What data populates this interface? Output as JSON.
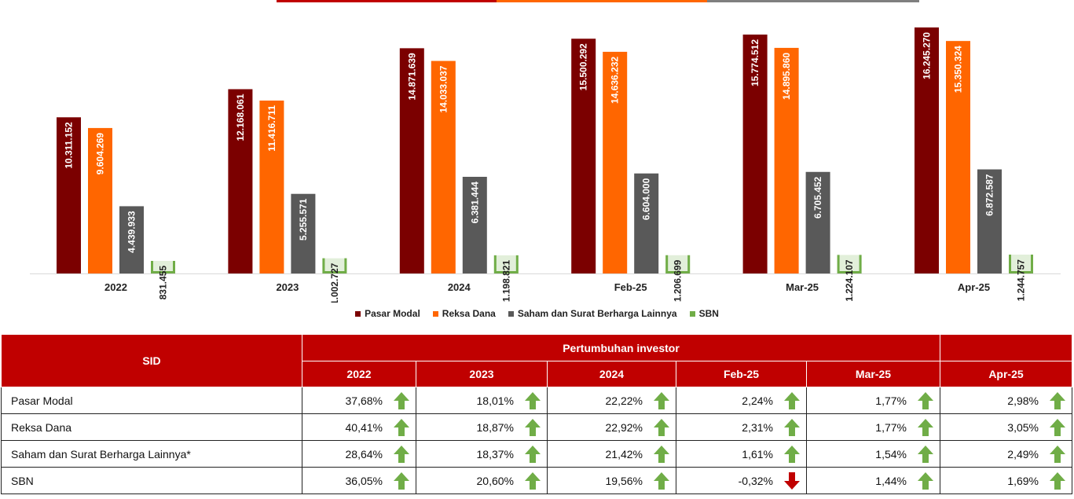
{
  "colors": {
    "pasar_modal": "#7b0000",
    "reksa_dana": "#ff6600",
    "saham": "#595959",
    "sbn": "#70ad47",
    "sbn_fill": "#e2efda",
    "header_red": "#c00000",
    "arrow_up": "#70ad47",
    "arrow_down": "#c00000"
  },
  "chart_data": {
    "type": "bar",
    "categories": [
      "2022",
      "2023",
      "2024",
      "Feb-25",
      "Mar-25",
      "Apr-25"
    ],
    "series": [
      {
        "name": "Pasar Modal",
        "values": [
          10311152,
          12168061,
          14871639,
          15500292,
          15774512,
          16245270
        ],
        "labels": [
          "10.311.152",
          "12.168.061",
          "14.871.639",
          "15.500.292",
          "15.774.512",
          "16.245.270"
        ]
      },
      {
        "name": "Reksa Dana",
        "values": [
          9604269,
          11416711,
          14033037,
          14636232,
          14895860,
          15350324
        ],
        "labels": [
          "9.604.269",
          "11.416.711",
          "14.033.037",
          "14.636.232",
          "14.895.860",
          "15.350.324"
        ]
      },
      {
        "name": "Saham dan Surat Berharga Lainnya",
        "values": [
          4439933,
          5255571,
          6381444,
          6604000,
          6705452,
          6872587
        ],
        "labels": [
          "4.439.933",
          "5.255.571",
          "6.381.444",
          "6.604.000",
          "6.705.452",
          "6.872.587"
        ]
      },
      {
        "name": "SBN",
        "values": [
          831455,
          1002727,
          1198821,
          1206699,
          1224107,
          1244757
        ],
        "labels": [
          "831.455",
          "1.002.727",
          "1.198.821",
          "1.206.699",
          "1.224.107",
          "1.244.757"
        ]
      }
    ],
    "ylim": [
      0,
      16500000
    ],
    "grid": false,
    "legend_position": "bottom"
  },
  "table": {
    "sid_label": "SID",
    "group_label": "Pertumbuhan investor",
    "periods": [
      "2022",
      "2023",
      "2024",
      "Feb-25",
      "Mar-25",
      "Apr-25"
    ],
    "rows": [
      {
        "label": "Pasar Modal",
        "values": [
          "37,68%",
          "18,01%",
          "22,22%",
          "2,24%",
          "1,77%",
          "2,98%"
        ],
        "trends": [
          "up",
          "up",
          "up",
          "up",
          "up",
          "up"
        ]
      },
      {
        "label": "Reksa Dana",
        "values": [
          "40,41%",
          "18,87%",
          "22,92%",
          "2,31%",
          "1,77%",
          "3,05%"
        ],
        "trends": [
          "up",
          "up",
          "up",
          "up",
          "up",
          "up"
        ]
      },
      {
        "label": "Saham dan Surat Berharga Lainnya*",
        "values": [
          "28,64%",
          "18,37%",
          "21,42%",
          "1,61%",
          "1,54%",
          "2,49%"
        ],
        "trends": [
          "up",
          "up",
          "up",
          "up",
          "up",
          "up"
        ]
      },
      {
        "label": "SBN",
        "values": [
          "36,05%",
          "20,60%",
          "19,56%",
          "-0,32%",
          "1,44%",
          "1,69%"
        ],
        "trends": [
          "up",
          "up",
          "up",
          "down",
          "up",
          "up"
        ]
      }
    ]
  }
}
